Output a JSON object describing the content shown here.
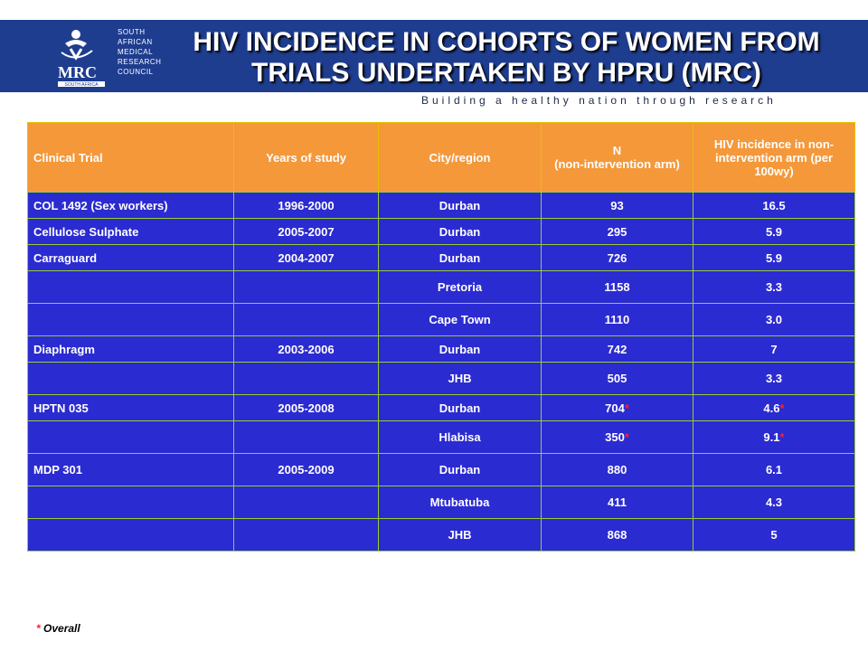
{
  "header": {
    "title_line1": "HIV INCIDENCE IN COHORTS OF WOMEN FROM",
    "title_line2": "TRIALS UNDERTAKEN BY HPRU (MRC)",
    "tagline": "Building a healthy nation through research",
    "logo": {
      "abbrev": "MRC",
      "country": "SOUTH AFRICA",
      "org_lines": [
        "SOUTH",
        "AFRICAN",
        "MEDICAL",
        "RESEARCH",
        "COUNCIL"
      ]
    }
  },
  "table": {
    "columns": [
      "Clinical Trial",
      "Years of study",
      "City/region",
      "N\n(non-intervention arm)",
      "HIV incidence in non-intervention arm (per 100wy)"
    ],
    "rows": [
      {
        "trial": "COL 1492 (Sex workers)",
        "years": "1996-2000",
        "city": "Durban",
        "n": "93",
        "n_star": "",
        "incidence": "16.5",
        "inc_star": ""
      },
      {
        "trial": "Cellulose Sulphate",
        "years": "2005-2007",
        "city": "Durban",
        "n": "295",
        "n_star": "",
        "incidence": "5.9",
        "inc_star": ""
      },
      {
        "trial": "Carraguard",
        "years": "2004-2007",
        "city": "Durban",
        "n": "726",
        "n_star": "",
        "incidence": "5.9",
        "inc_star": ""
      },
      {
        "trial": "",
        "years": "",
        "city": "Pretoria",
        "n": "1158",
        "n_star": "",
        "incidence": "3.3",
        "inc_star": ""
      },
      {
        "trial": "",
        "years": "",
        "city": "Cape Town",
        "n": "1110",
        "n_star": "",
        "incidence": "3.0",
        "inc_star": ""
      },
      {
        "trial": "Diaphragm",
        "years": "2003-2006",
        "city": "Durban",
        "n": "742",
        "n_star": "",
        "incidence": "7",
        "inc_star": ""
      },
      {
        "trial": "",
        "years": "",
        "city": "JHB",
        "n": "505",
        "n_star": "",
        "incidence": "3.3",
        "inc_star": ""
      },
      {
        "trial": "HPTN 035",
        "years": "2005-2008",
        "city": "Durban",
        "n": "704",
        "n_star": "*",
        "incidence": "4.6",
        "inc_star": "*"
      },
      {
        "trial": "",
        "years": "",
        "city": "Hlabisa",
        "n": "350",
        "n_star": "*",
        "incidence": "9.1",
        "inc_star": "*"
      },
      {
        "trial": "MDP 301",
        "years": "2005-2009",
        "city": "Durban",
        "n": "880",
        "n_star": "",
        "incidence": "6.1",
        "inc_star": ""
      },
      {
        "trial": "",
        "years": "",
        "city": "Mtubatuba",
        "n": "411",
        "n_star": "",
        "incidence": "4.3",
        "inc_star": ""
      },
      {
        "trial": "",
        "years": "",
        "city": "JHB",
        "n": "868",
        "n_star": "",
        "incidence": "5",
        "inc_star": ""
      }
    ]
  },
  "footnote": {
    "marker": "*",
    "text": " Overall"
  },
  "colors": {
    "banner": "#1f3d8f",
    "header_cell": "#f4983a",
    "body_cell": "#2b2bd2",
    "grid_line": "#9acd32",
    "asterisk": "#ff2020"
  }
}
